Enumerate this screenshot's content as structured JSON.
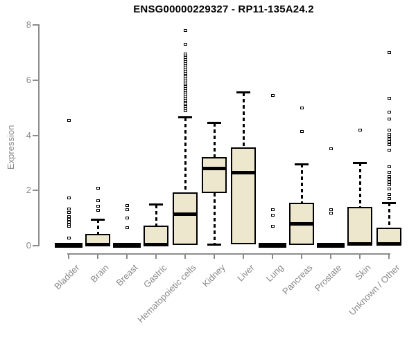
{
  "chart_data": {
    "type": "boxplot",
    "title": "ENSG00000229327 - RP11-135A24.2",
    "ylabel": "Expression",
    "xlabel": "",
    "ylim": [
      0,
      8
    ],
    "yticks": [
      0,
      2,
      4,
      6,
      8
    ],
    "grid": false,
    "legend": "none",
    "colors": {
      "box_fill": "#EDE7CE",
      "box_border": "#000000",
      "axis": "#8C8C8C",
      "tick_label": "#888888",
      "title": "#000000"
    },
    "categories": [
      {
        "label": "Bladder",
        "stats": {
          "low": 0,
          "q1": 0,
          "med": 0.02,
          "q3": 0.04,
          "high": 0.04
        },
        "outliers": [
          4.55,
          1.73,
          1.33,
          1.2,
          1.05,
          0.95,
          0.85,
          0.75,
          0.7,
          0.28
        ]
      },
      {
        "label": "Brain",
        "stats": {
          "low": 0,
          "q1": 0,
          "med": 0.03,
          "q3": 0.43,
          "high": 0.95
        },
        "outliers": [
          2.08,
          1.63,
          1.43,
          1.28
        ]
      },
      {
        "label": "Breast",
        "stats": {
          "low": 0,
          "q1": 0,
          "med": 0.02,
          "q3": 0.04,
          "high": 0.04
        },
        "outliers": [
          1.45,
          1.3,
          1.0,
          0.65
        ]
      },
      {
        "label": "Gastric",
        "stats": {
          "low": 0,
          "q1": 0,
          "med": 0.03,
          "q3": 0.73,
          "high": 1.48
        },
        "outliers": []
      },
      {
        "label": "Hematopoietic cells",
        "stats": {
          "low": 0,
          "q1": 0.03,
          "med": 1.15,
          "q3": 1.93,
          "high": 4.65
        },
        "outliers": [
          7.8,
          7.3,
          6.95,
          6.88,
          6.81,
          6.74,
          6.67,
          6.6,
          6.53,
          6.46,
          6.39,
          6.32,
          6.25,
          6.18,
          6.11,
          6.04,
          5.97,
          5.9,
          5.83,
          5.76,
          5.69,
          5.62,
          5.55,
          5.48,
          5.41,
          5.34,
          5.27,
          5.2,
          5.13,
          5.05,
          4.97,
          4.9
        ]
      },
      {
        "label": "Kidney",
        "stats": {
          "low": 0.05,
          "q1": 1.9,
          "med": 2.8,
          "q3": 3.2,
          "high": 4.45
        },
        "outliers": []
      },
      {
        "label": "Liver",
        "stats": {
          "low": 0.03,
          "q1": 0.05,
          "med": 2.65,
          "q3": 3.55,
          "high": 5.55
        },
        "outliers": []
      },
      {
        "label": "Lung",
        "stats": {
          "low": 0,
          "q1": 0,
          "med": 0.02,
          "q3": 0.04,
          "high": 0.04
        },
        "outliers": [
          5.45,
          1.3,
          1.1,
          0.7
        ]
      },
      {
        "label": "Pancreas",
        "stats": {
          "low": 0,
          "q1": 0.02,
          "med": 0.8,
          "q3": 1.55,
          "high": 2.95
        },
        "outliers": [
          5.0,
          4.15
        ]
      },
      {
        "label": "Prostate",
        "stats": {
          "low": 0,
          "q1": 0,
          "med": 0.02,
          "q3": 0.04,
          "high": 0.04
        },
        "outliers": [
          3.5,
          1.3,
          1.18
        ]
      },
      {
        "label": "Skin",
        "stats": {
          "low": 0,
          "q1": 0.02,
          "med": 0.07,
          "q3": 1.4,
          "high": 3.0
        },
        "outliers": [
          4.2
        ]
      },
      {
        "label": "Unknown / Other",
        "stats": {
          "low": 0,
          "q1": 0.02,
          "med": 0.07,
          "q3": 0.65,
          "high": 1.55
        },
        "outliers": [
          7.0,
          5.35,
          4.85,
          4.6,
          4.18,
          4.05,
          3.95,
          3.85,
          3.75,
          3.65,
          3.45,
          2.85,
          2.65,
          2.5,
          2.4,
          2.3,
          2.2,
          2.05,
          1.85,
          1.7
        ]
      }
    ]
  }
}
